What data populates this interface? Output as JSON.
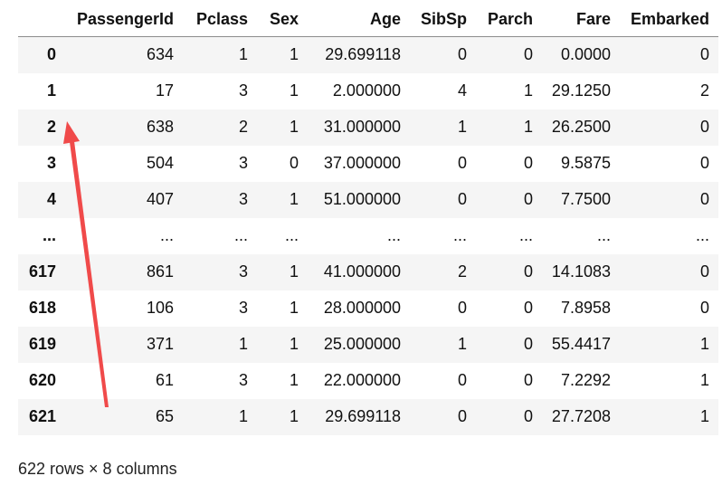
{
  "dataframe": {
    "columns": [
      "",
      "PassengerId",
      "Pclass",
      "Sex",
      "Age",
      "SibSp",
      "Parch",
      "Fare",
      "Embarked"
    ],
    "rows": [
      [
        "0",
        "634",
        "1",
        "1",
        "29.699118",
        "0",
        "0",
        "0.0000",
        "0"
      ],
      [
        "1",
        "17",
        "3",
        "1",
        "2.000000",
        "4",
        "1",
        "29.1250",
        "2"
      ],
      [
        "2",
        "638",
        "2",
        "1",
        "31.000000",
        "1",
        "1",
        "26.2500",
        "0"
      ],
      [
        "3",
        "504",
        "3",
        "0",
        "37.000000",
        "0",
        "0",
        "9.5875",
        "0"
      ],
      [
        "4",
        "407",
        "3",
        "1",
        "51.000000",
        "0",
        "0",
        "7.7500",
        "0"
      ],
      [
        "...",
        "...",
        "...",
        "...",
        "...",
        "...",
        "...",
        "...",
        "..."
      ],
      [
        "617",
        "861",
        "3",
        "1",
        "41.000000",
        "2",
        "0",
        "14.1083",
        "0"
      ],
      [
        "618",
        "106",
        "3",
        "1",
        "28.000000",
        "0",
        "0",
        "7.8958",
        "0"
      ],
      [
        "619",
        "371",
        "1",
        "1",
        "25.000000",
        "1",
        "0",
        "55.4417",
        "1"
      ],
      [
        "620",
        "61",
        "3",
        "1",
        "22.000000",
        "0",
        "0",
        "7.2292",
        "1"
      ],
      [
        "621",
        "65",
        "1",
        "1",
        "29.699118",
        "0",
        "0",
        "27.7208",
        "1"
      ]
    ],
    "caption": "622 rows × 8 columns"
  },
  "annotation": {
    "icon": "red-arrow-icon",
    "color": "#f04a4a"
  }
}
